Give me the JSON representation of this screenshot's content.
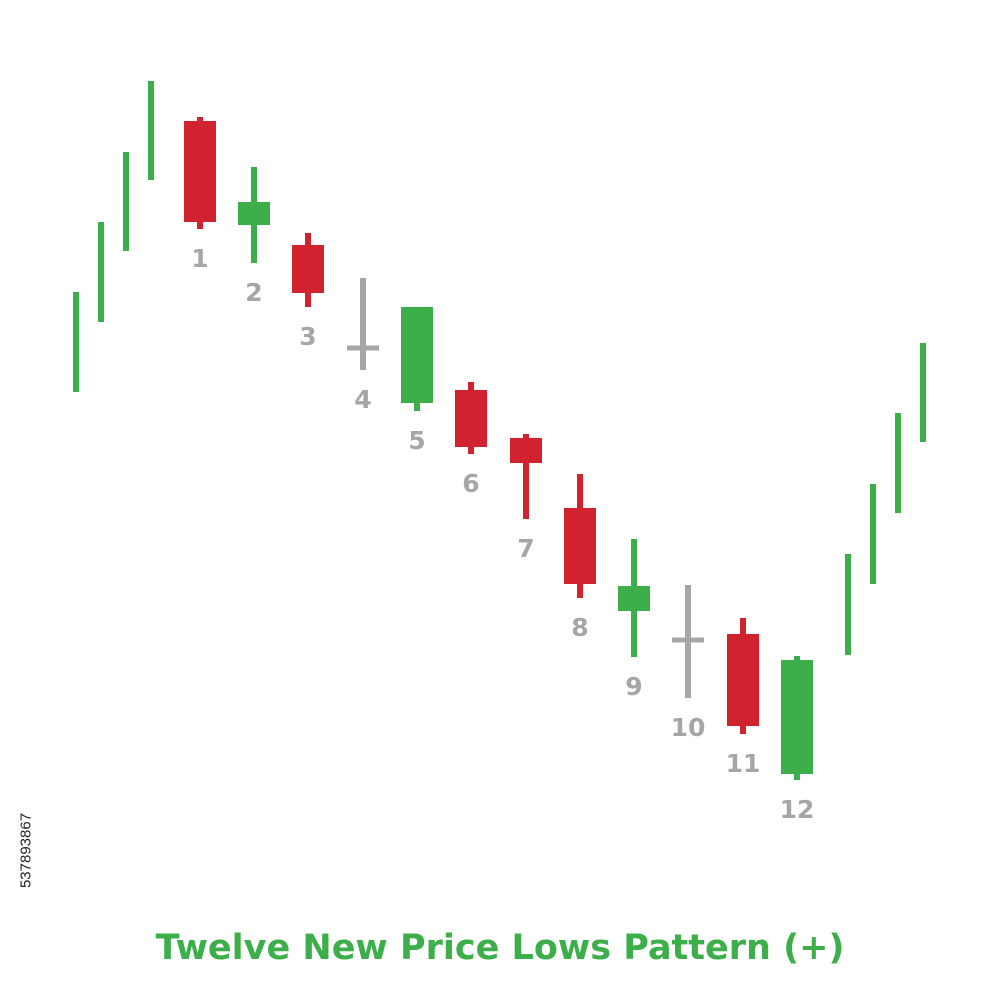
{
  "title": "Twelve New Price Lows Pattern (+)",
  "image_id_text": "537893867",
  "colors": {
    "bullish": "#3cae4a",
    "bearish": "#d1232f",
    "doji": "#a6a6a6",
    "label": "#a6a6a6",
    "title": "#3cae4a"
  },
  "chart_data": {
    "type": "candlestick",
    "y_axis_shown": false,
    "grid": false,
    "context_bars_left": [
      {
        "high": 708,
        "low": 608
      },
      {
        "high": 778,
        "low": 678
      },
      {
        "high": 848,
        "low": 749
      },
      {
        "high": 919,
        "low": 820
      }
    ],
    "pattern_candles": [
      {
        "label": "1",
        "color": "bearish",
        "open": 879,
        "close": 778,
        "high": 883,
        "low": 771
      },
      {
        "label": "2",
        "color": "bullish",
        "open": 775,
        "close": 798,
        "high": 833,
        "low": 737
      },
      {
        "label": "3",
        "color": "bearish",
        "open": 755,
        "close": 707,
        "high": 767,
        "low": 693
      },
      {
        "label": "4",
        "color": "doji",
        "open": 652,
        "close": 652,
        "high": 722,
        "low": 630
      },
      {
        "label": "5",
        "color": "bullish",
        "open": 597,
        "close": 693,
        "high": 693,
        "low": 589
      },
      {
        "label": "6",
        "color": "bearish",
        "open": 610,
        "close": 553,
        "high": 618,
        "low": 546
      },
      {
        "label": "7",
        "color": "bearish",
        "open": 562,
        "close": 537,
        "high": 566,
        "low": 481
      },
      {
        "label": "8",
        "color": "bearish",
        "open": 492,
        "close": 416,
        "high": 526,
        "low": 402
      },
      {
        "label": "9",
        "color": "bullish",
        "open": 389,
        "close": 414,
        "high": 461,
        "low": 343
      },
      {
        "label": "10",
        "color": "doji",
        "open": 360,
        "close": 360,
        "high": 415,
        "low": 302
      },
      {
        "label": "11",
        "color": "bearish",
        "open": 366,
        "close": 274,
        "high": 382,
        "low": 266
      },
      {
        "label": "12",
        "color": "bullish",
        "open": 226,
        "close": 340,
        "high": 344,
        "low": 220
      }
    ],
    "context_bars_right": [
      {
        "high": 446,
        "low": 345
      },
      {
        "high": 516,
        "low": 416
      },
      {
        "high": 587,
        "low": 487
      },
      {
        "high": 657,
        "low": 558
      }
    ],
    "ylim": [
      0,
      1000
    ]
  }
}
